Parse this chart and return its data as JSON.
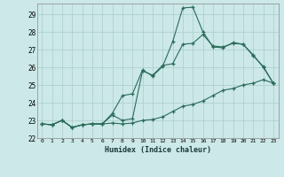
{
  "xlabel": "Humidex (Indice chaleur)",
  "ylabel": "",
  "bg_color": "#cce8e8",
  "grid_color": "#aacccc",
  "line_color": "#2a6b5a",
  "xlim": [
    -0.5,
    23.5
  ],
  "ylim": [
    22,
    29.6
  ],
  "yticks": [
    22,
    23,
    24,
    25,
    26,
    27,
    28,
    29
  ],
  "xticks": [
    0,
    1,
    2,
    3,
    4,
    5,
    6,
    7,
    8,
    9,
    10,
    11,
    12,
    13,
    14,
    15,
    16,
    17,
    18,
    19,
    20,
    21,
    22,
    23
  ],
  "series1_x": [
    0,
    1,
    2,
    3,
    4,
    5,
    6,
    7,
    8,
    9,
    10,
    11,
    12,
    13,
    14,
    15,
    16,
    17,
    18,
    19,
    20,
    21,
    22,
    23
  ],
  "series1_y": [
    22.8,
    22.75,
    23.0,
    22.6,
    22.75,
    22.8,
    22.8,
    22.85,
    22.8,
    22.85,
    23.0,
    23.05,
    23.2,
    23.5,
    23.8,
    23.9,
    24.1,
    24.4,
    24.7,
    24.8,
    25.0,
    25.1,
    25.3,
    25.1
  ],
  "series2_x": [
    0,
    1,
    2,
    3,
    4,
    5,
    6,
    7,
    8,
    9,
    10,
    11,
    12,
    13,
    14,
    15,
    16,
    17,
    18,
    19,
    20,
    21,
    22,
    23
  ],
  "series2_y": [
    22.8,
    22.75,
    23.0,
    22.6,
    22.75,
    22.8,
    22.8,
    23.3,
    23.0,
    23.1,
    25.8,
    25.55,
    26.1,
    26.2,
    27.3,
    27.35,
    27.85,
    27.2,
    27.15,
    27.35,
    27.3,
    26.7,
    26.0,
    25.1
  ],
  "series3_x": [
    0,
    1,
    2,
    3,
    4,
    5,
    6,
    7,
    8,
    9,
    10,
    11,
    12,
    13,
    14,
    15,
    16,
    17,
    18,
    19,
    20,
    21,
    22,
    23
  ],
  "series3_y": [
    22.8,
    22.75,
    23.0,
    22.6,
    22.75,
    22.8,
    22.8,
    23.4,
    24.4,
    24.5,
    25.85,
    25.5,
    26.05,
    27.45,
    29.35,
    29.4,
    28.0,
    27.15,
    27.1,
    27.4,
    27.3,
    26.65,
    26.05,
    25.1
  ]
}
